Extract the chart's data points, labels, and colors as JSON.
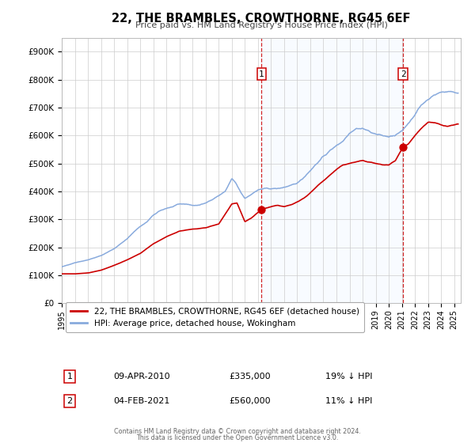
{
  "title": "22, THE BRAMBLES, CROWTHORNE, RG45 6EF",
  "subtitle": "Price paid vs. HM Land Registry's House Price Index (HPI)",
  "legend_line1": "22, THE BRAMBLES, CROWTHORNE, RG45 6EF (detached house)",
  "legend_line2": "HPI: Average price, detached house, Wokingham",
  "footnote1": "Contains HM Land Registry data © Crown copyright and database right 2024.",
  "footnote2": "This data is licensed under the Open Government Licence v3.0.",
  "sale1_date": "09-APR-2010",
  "sale1_price": "£335,000",
  "sale1_hpi": "19% ↓ HPI",
  "sale2_date": "04-FEB-2021",
  "sale2_price": "£560,000",
  "sale2_hpi": "11% ↓ HPI",
  "line_color_red": "#cc0000",
  "line_color_blue": "#88aadd",
  "shaded_color": "#ddeeff",
  "marker_color": "#cc0000",
  "vline_color": "#cc0000",
  "grid_color": "#cccccc",
  "background_color": "#ffffff",
  "sale1_x": 2010.27,
  "sale2_x": 2021.09,
  "ylim_min": 0,
  "ylim_max": 950000,
  "xlim_min": 1995.0,
  "xlim_max": 2025.5,
  "hpi_key": [
    [
      1995.0,
      130000
    ],
    [
      1996.0,
      145000
    ],
    [
      1997.0,
      155000
    ],
    [
      1998.0,
      170000
    ],
    [
      1999.0,
      195000
    ],
    [
      2000.0,
      230000
    ],
    [
      2000.5,
      255000
    ],
    [
      2001.0,
      275000
    ],
    [
      2001.5,
      290000
    ],
    [
      2002.0,
      315000
    ],
    [
      2002.5,
      330000
    ],
    [
      2003.0,
      340000
    ],
    [
      2003.5,
      345000
    ],
    [
      2004.0,
      355000
    ],
    [
      2004.5,
      355000
    ],
    [
      2005.0,
      350000
    ],
    [
      2005.5,
      350000
    ],
    [
      2006.0,
      360000
    ],
    [
      2006.5,
      370000
    ],
    [
      2007.0,
      385000
    ],
    [
      2007.5,
      400000
    ],
    [
      2008.0,
      445000
    ],
    [
      2008.3,
      430000
    ],
    [
      2008.7,
      395000
    ],
    [
      2009.0,
      375000
    ],
    [
      2009.5,
      390000
    ],
    [
      2010.0,
      405000
    ],
    [
      2010.5,
      410000
    ],
    [
      2011.0,
      410000
    ],
    [
      2011.5,
      410000
    ],
    [
      2012.0,
      415000
    ],
    [
      2012.5,
      420000
    ],
    [
      2013.0,
      430000
    ],
    [
      2013.5,
      450000
    ],
    [
      2014.0,
      475000
    ],
    [
      2014.5,
      500000
    ],
    [
      2015.0,
      525000
    ],
    [
      2015.5,
      545000
    ],
    [
      2016.0,
      565000
    ],
    [
      2016.5,
      580000
    ],
    [
      2017.0,
      610000
    ],
    [
      2017.5,
      625000
    ],
    [
      2018.0,
      625000
    ],
    [
      2018.5,
      615000
    ],
    [
      2019.0,
      605000
    ],
    [
      2019.5,
      600000
    ],
    [
      2020.0,
      595000
    ],
    [
      2020.5,
      600000
    ],
    [
      2021.0,
      615000
    ],
    [
      2021.5,
      645000
    ],
    [
      2022.0,
      675000
    ],
    [
      2022.5,
      710000
    ],
    [
      2023.0,
      730000
    ],
    [
      2023.5,
      745000
    ],
    [
      2024.0,
      755000
    ],
    [
      2024.5,
      758000
    ],
    [
      2025.0,
      755000
    ],
    [
      2025.3,
      752000
    ]
  ],
  "red_key": [
    [
      1995.0,
      105000
    ],
    [
      1996.0,
      105000
    ],
    [
      1997.0,
      108000
    ],
    [
      1998.0,
      118000
    ],
    [
      1999.0,
      135000
    ],
    [
      2000.0,
      155000
    ],
    [
      2001.0,
      178000
    ],
    [
      2002.0,
      212000
    ],
    [
      2003.0,
      238000
    ],
    [
      2004.0,
      258000
    ],
    [
      2005.0,
      265000
    ],
    [
      2006.0,
      270000
    ],
    [
      2007.0,
      283000
    ],
    [
      2008.0,
      355000
    ],
    [
      2008.4,
      358000
    ],
    [
      2009.0,
      292000
    ],
    [
      2009.5,
      305000
    ],
    [
      2010.27,
      335000
    ],
    [
      2010.6,
      340000
    ],
    [
      2011.0,
      345000
    ],
    [
      2011.5,
      350000
    ],
    [
      2012.0,
      345000
    ],
    [
      2012.5,
      352000
    ],
    [
      2013.0,
      362000
    ],
    [
      2013.5,
      375000
    ],
    [
      2014.0,
      395000
    ],
    [
      2014.5,
      418000
    ],
    [
      2015.0,
      438000
    ],
    [
      2015.5,
      458000
    ],
    [
      2016.0,
      478000
    ],
    [
      2016.5,
      495000
    ],
    [
      2017.0,
      500000
    ],
    [
      2017.5,
      506000
    ],
    [
      2018.0,
      510000
    ],
    [
      2018.5,
      505000
    ],
    [
      2019.0,
      500000
    ],
    [
      2019.5,
      495000
    ],
    [
      2020.0,
      495000
    ],
    [
      2020.5,
      510000
    ],
    [
      2021.09,
      560000
    ],
    [
      2021.5,
      570000
    ],
    [
      2022.0,
      600000
    ],
    [
      2022.5,
      625000
    ],
    [
      2023.0,
      648000
    ],
    [
      2023.5,
      645000
    ],
    [
      2024.0,
      638000
    ],
    [
      2024.5,
      632000
    ],
    [
      2025.0,
      638000
    ],
    [
      2025.3,
      640000
    ]
  ]
}
